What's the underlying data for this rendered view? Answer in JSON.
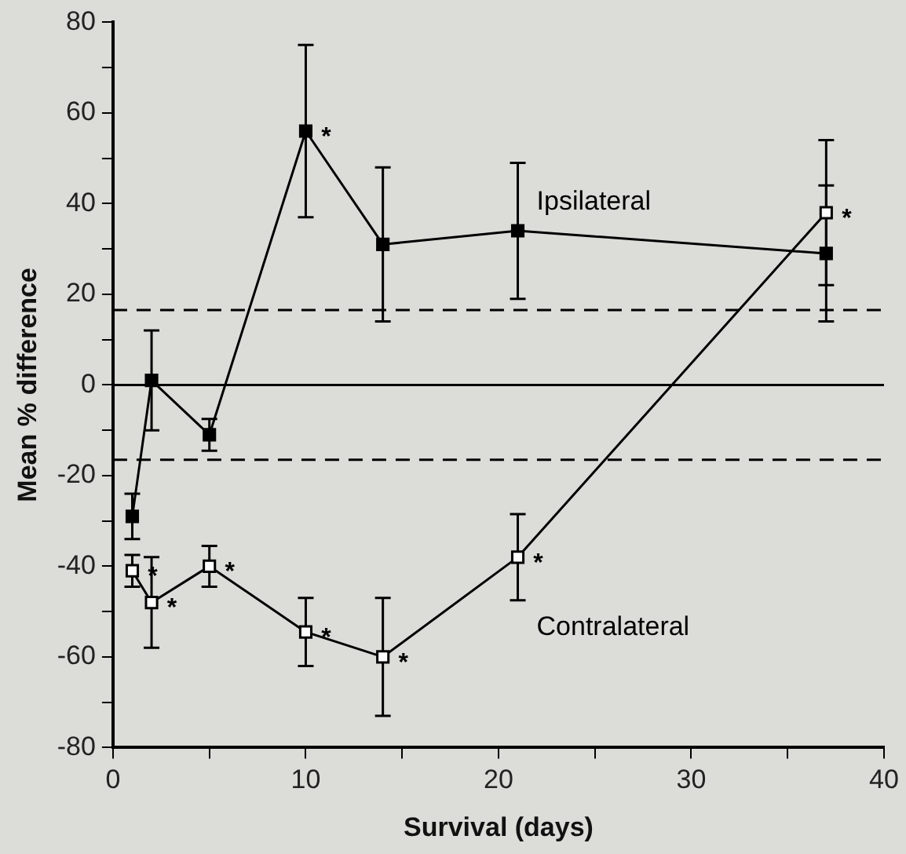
{
  "chart_data": {
    "type": "line",
    "xlabel": "Survival (days)",
    "ylabel": "Mean % difference",
    "xlim": [
      0,
      40
    ],
    "xticks": [
      0,
      {
        "value": 5,
        "label": null
      },
      10,
      {
        "value": 15,
        "label": null
      },
      20,
      {
        "value": 25,
        "label": null
      },
      30,
      {
        "value": 35,
        "label": null
      },
      40
    ],
    "ylim": [
      -80,
      80
    ],
    "yticks": [
      -80,
      {
        "value": -70,
        "label": null
      },
      -60,
      {
        "value": -50,
        "label": null
      },
      -40,
      {
        "value": -30,
        "label": null
      },
      -20,
      {
        "value": -10,
        "label": null
      },
      0,
      {
        "value": 10,
        "label": null
      },
      20,
      {
        "value": 30,
        "label": null
      },
      40,
      {
        "value": 50,
        "label": null
      },
      60,
      {
        "value": 70,
        "label": null
      },
      80
    ],
    "grid": false,
    "legend": false,
    "marker": "square",
    "line_style": "solid",
    "series": [
      {
        "name": "Ipsilateral",
        "color": "#000000",
        "x": [
          1,
          2,
          5,
          10,
          14,
          21,
          37
        ],
        "values": [
          -29,
          1,
          -11,
          56,
          31,
          34,
          29
        ],
        "errors": [
          5,
          11,
          3.5,
          19,
          17,
          15,
          15
        ]
      },
      {
        "name": "Contralateral",
        "color": "#000000",
        "x": [
          1,
          2,
          5,
          10,
          14,
          21,
          37
        ],
        "values": [
          -41,
          -48,
          -40,
          -54.5,
          -60,
          -38,
          38
        ],
        "errors": [
          3.5,
          10,
          4.5,
          7.5,
          13,
          9.5,
          16
        ]
      }
    ],
    "ref_lines": [
      {
        "axis": "y",
        "value": 0,
        "line_style": "solid",
        "color": "#000000"
      },
      {
        "axis": "y",
        "value": 16.5,
        "line_style": "dashed",
        "color": "#000000"
      },
      {
        "axis": "y",
        "value": -16.5,
        "line_style": "dashed",
        "color": "#000000"
      }
    ],
    "annotations": [
      {
        "text": "*",
        "x": 10,
        "y": 56
      },
      {
        "text": "*",
        "x": 1,
        "y": -41
      },
      {
        "text": "*",
        "x": 2,
        "y": -48
      },
      {
        "text": "*",
        "x": 5,
        "y": -40
      },
      {
        "text": "*",
        "x": 10,
        "y": -54.5
      },
      {
        "text": "*",
        "x": 14,
        "y": -60
      },
      {
        "text": "*",
        "x": 21,
        "y": -38
      },
      {
        "text": "*",
        "x": 37,
        "y": 38
      }
    ]
  }
}
